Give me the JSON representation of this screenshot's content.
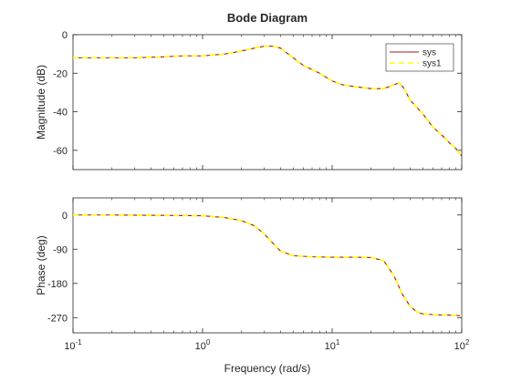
{
  "chart_data": {
    "type": "line",
    "title": "Bode Diagram",
    "xlabel": "Frequency  (rad/s)",
    "xscale": "log",
    "xlim": [
      0.1,
      100
    ],
    "x_ticks": [
      {
        "base": "10",
        "exp": "-1"
      },
      {
        "base": "10",
        "exp": "0"
      },
      {
        "base": "10",
        "exp": "1"
      },
      {
        "base": "10",
        "exp": "2"
      }
    ],
    "grid": false,
    "legend": {
      "placement": "top-right",
      "entries": [
        "sys",
        "sys1"
      ]
    },
    "colors": {
      "sys": "#a2142f",
      "sys1": "#ffff00"
    },
    "panels": [
      {
        "name": "magnitude",
        "ylabel": "Magnitude  (dB)",
        "ylim": [
          -70,
          0
        ],
        "yticks": [
          0,
          -20,
          -40,
          -60
        ],
        "x": [
          0.1,
          0.15,
          0.2,
          0.3,
          0.5,
          0.7,
          1.0,
          1.5,
          2.0,
          2.5,
          3.0,
          3.5,
          4.0,
          5.0,
          6.0,
          8.0,
          10,
          12,
          15,
          20,
          25,
          30,
          33,
          36,
          40,
          50,
          60,
          70,
          80,
          90,
          100
        ],
        "series": [
          {
            "name": "sys",
            "values": [
              -12,
              -12,
              -12,
              -12,
              -11.5,
              -11,
              -11,
              -10,
              -8.5,
              -7,
              -6,
              -6,
              -7,
              -12,
              -16,
              -20,
              -24,
              -26,
              -27,
              -28,
              -28,
              -26,
              -25,
              -28,
              -34,
              -41,
              -48,
              -52,
              -56,
              -59,
              -63
            ]
          },
          {
            "name": "sys1",
            "values": [
              -12,
              -12,
              -12,
              -12,
              -11.5,
              -11,
              -11,
              -10,
              -8.5,
              -7,
              -6,
              -6,
              -7,
              -12,
              -16,
              -20,
              -24,
              -26,
              -27,
              -28,
              -28,
              -26,
              -25,
              -28,
              -34,
              -41,
              -48,
              -52,
              -56,
              -59,
              -63
            ]
          }
        ]
      },
      {
        "name": "phase",
        "ylabel": "Phase  (deg)",
        "ylim": [
          -310,
          45
        ],
        "yticks": [
          0,
          -90,
          -180,
          -270
        ],
        "x": [
          0.1,
          0.2,
          0.5,
          1.0,
          1.5,
          2.0,
          2.5,
          3.0,
          3.5,
          4.0,
          5.0,
          7.0,
          10,
          15,
          20,
          25,
          30,
          35,
          40,
          45,
          50,
          60,
          70,
          80,
          90,
          100
        ],
        "series": [
          {
            "name": "sys",
            "values": [
              0,
              0,
              -1,
              -2,
              -7,
              -15,
              -28,
              -50,
              -75,
              -95,
              -107,
              -110,
              -111,
              -111,
              -112,
              -120,
              -160,
              -210,
              -240,
              -255,
              -260,
              -262,
              -263,
              -263,
              -264,
              -265
            ]
          },
          {
            "name": "sys1",
            "values": [
              0,
              0,
              -1,
              -2,
              -7,
              -15,
              -28,
              -50,
              -75,
              -95,
              -107,
              -110,
              -111,
              -111,
              -112,
              -120,
              -160,
              -210,
              -240,
              -255,
              -260,
              -262,
              -263,
              -263,
              -264,
              -265
            ]
          }
        ]
      }
    ]
  }
}
